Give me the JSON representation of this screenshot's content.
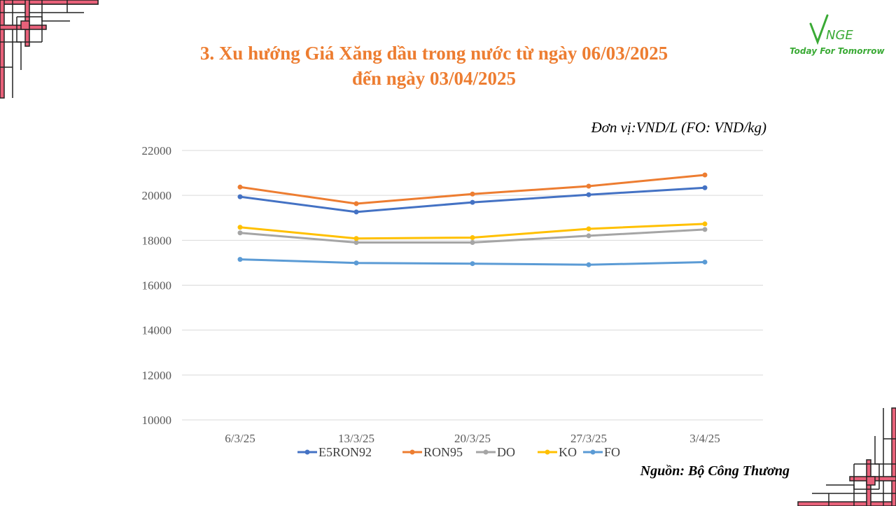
{
  "title": {
    "line1": "3. Xu hướng Giá Xăng dầu trong nước từ ngày 06/03/2025",
    "line2": "đến ngày 03/04/2025"
  },
  "unit_note": "Đơn vị:VND/L (FO: VND/kg)",
  "source_note": "Nguồn: Bộ Công Thương",
  "logo": {
    "tagline": "Today For Tomorrow"
  },
  "colors": {
    "title": "#ed7d31",
    "logo": "#3aaa35",
    "corner": "#e8617a"
  },
  "chart_data": {
    "type": "line",
    "categories": [
      "6/3/25",
      "13/3/25",
      "20/3/25",
      "27/3/25",
      "3/4/25"
    ],
    "ylim": [
      10000,
      22000
    ],
    "yticks": [
      10000,
      12000,
      14000,
      16000,
      18000,
      20000,
      22000
    ],
    "grid": true,
    "legend_position": "bottom",
    "series": [
      {
        "name": "E5RON92",
        "color": "#4472c4",
        "values": [
          19940,
          19260,
          19690,
          20030,
          20340
        ]
      },
      {
        "name": "RON95",
        "color": "#ed7d31",
        "values": [
          20370,
          19630,
          20060,
          20410,
          20910
        ]
      },
      {
        "name": "DO",
        "color": "#a5a5a5",
        "values": [
          18330,
          17900,
          17900,
          18200,
          18480
        ]
      },
      {
        "name": "KO",
        "color": "#ffc000",
        "values": [
          18580,
          18080,
          18120,
          18510,
          18730
        ]
      },
      {
        "name": "FO",
        "color": "#5b9bd5",
        "values": [
          17150,
          16990,
          16960,
          16910,
          17030
        ]
      }
    ]
  }
}
